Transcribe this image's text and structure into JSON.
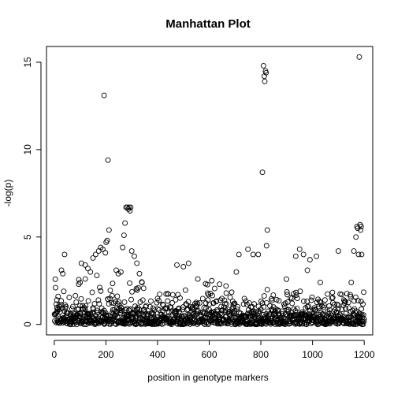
{
  "chart_data": {
    "type": "scatter",
    "title": "Manhattan Plot",
    "xlabel": "position in genotype markers",
    "ylabel": "-log(p)",
    "xlim": [
      -30,
      1233
    ],
    "ylim": [
      -0.6,
      15.9
    ],
    "x_ticks": [
      0,
      200,
      400,
      600,
      800,
      1000,
      1200
    ],
    "y_ticks": [
      0,
      5,
      10,
      15
    ],
    "grid": false,
    "legend": "none",
    "point_style": "open-circle",
    "point_color": "#000000",
    "n_points": 1200,
    "peaks": [
      {
        "x": 5,
        "y": 2.1
      },
      {
        "x": 10,
        "y": 1.4
      },
      {
        "x": 15,
        "y": 1.6
      },
      {
        "x": 28,
        "y": 3.1
      },
      {
        "x": 33,
        "y": 2.9
      },
      {
        "x": 40,
        "y": 4.0
      },
      {
        "x": 95,
        "y": 2.3
      },
      {
        "x": 100,
        "y": 2.4
      },
      {
        "x": 105,
        "y": 3.5
      },
      {
        "x": 120,
        "y": 3.4
      },
      {
        "x": 130,
        "y": 3.2
      },
      {
        "x": 140,
        "y": 3.0
      },
      {
        "x": 150,
        "y": 3.8
      },
      {
        "x": 160,
        "y": 4.0
      },
      {
        "x": 165,
        "y": 2.8
      },
      {
        "x": 172,
        "y": 4.2
      },
      {
        "x": 180,
        "y": 4.4
      },
      {
        "x": 188,
        "y": 4.3
      },
      {
        "x": 193,
        "y": 13.1
      },
      {
        "x": 198,
        "y": 4.1
      },
      {
        "x": 201,
        "y": 4.7
      },
      {
        "x": 205,
        "y": 4.8
      },
      {
        "x": 208,
        "y": 9.4
      },
      {
        "x": 212,
        "y": 5.4
      },
      {
        "x": 240,
        "y": 3.1
      },
      {
        "x": 248,
        "y": 2.9
      },
      {
        "x": 258,
        "y": 3.0
      },
      {
        "x": 265,
        "y": 4.4
      },
      {
        "x": 270,
        "y": 5.1
      },
      {
        "x": 274,
        "y": 5.8
      },
      {
        "x": 278,
        "y": 6.7
      },
      {
        "x": 283,
        "y": 6.7
      },
      {
        "x": 287,
        "y": 6.6
      },
      {
        "x": 290,
        "y": 6.7
      },
      {
        "x": 293,
        "y": 6.5
      },
      {
        "x": 296,
        "y": 6.7
      },
      {
        "x": 300,
        "y": 4.2
      },
      {
        "x": 310,
        "y": 3.9
      },
      {
        "x": 320,
        "y": 3.5
      },
      {
        "x": 330,
        "y": 2.9
      },
      {
        "x": 340,
        "y": 2.4
      },
      {
        "x": 475,
        "y": 3.4
      },
      {
        "x": 500,
        "y": 3.3
      },
      {
        "x": 520,
        "y": 3.5
      },
      {
        "x": 610,
        "y": 2.5
      },
      {
        "x": 640,
        "y": 2.3
      },
      {
        "x": 665,
        "y": 2.2
      },
      {
        "x": 705,
        "y": 3.0
      },
      {
        "x": 715,
        "y": 4.0
      },
      {
        "x": 750,
        "y": 4.3
      },
      {
        "x": 770,
        "y": 4.0
      },
      {
        "x": 790,
        "y": 4.0
      },
      {
        "x": 806,
        "y": 8.7
      },
      {
        "x": 810,
        "y": 14.8
      },
      {
        "x": 813,
        "y": 14.2
      },
      {
        "x": 815,
        "y": 13.9
      },
      {
        "x": 818,
        "y": 14.5
      },
      {
        "x": 820,
        "y": 14.4
      },
      {
        "x": 822,
        "y": 4.5
      },
      {
        "x": 825,
        "y": 5.4
      },
      {
        "x": 935,
        "y": 3.9
      },
      {
        "x": 950,
        "y": 4.3
      },
      {
        "x": 965,
        "y": 4.0
      },
      {
        "x": 980,
        "y": 3.1
      },
      {
        "x": 990,
        "y": 3.7
      },
      {
        "x": 1015,
        "y": 3.9
      },
      {
        "x": 1030,
        "y": 2.4
      },
      {
        "x": 1100,
        "y": 4.2
      },
      {
        "x": 1150,
        "y": 2.4
      },
      {
        "x": 1160,
        "y": 4.2
      },
      {
        "x": 1168,
        "y": 5.0
      },
      {
        "x": 1172,
        "y": 5.6
      },
      {
        "x": 1175,
        "y": 5.5
      },
      {
        "x": 1178,
        "y": 4.0
      },
      {
        "x": 1181,
        "y": 15.3
      },
      {
        "x": 1184,
        "y": 5.7
      },
      {
        "x": 1186,
        "y": 5.4
      },
      {
        "x": 1188,
        "y": 5.6
      },
      {
        "x": 1190,
        "y": 4.0
      }
    ],
    "background_max_y": 2.6
  }
}
